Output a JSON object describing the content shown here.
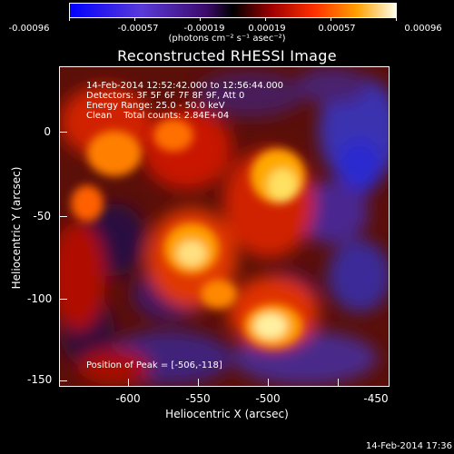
{
  "colorbar": {
    "ticks": [
      "-0.00096",
      "-0.00057",
      "-0.00019",
      "0.00019",
      "0.00057",
      "0.00096"
    ],
    "units": "(photons cm⁻² s⁻¹ asec⁻²)"
  },
  "title": "Reconstructed RHESSI Image",
  "annotations": {
    "time": "14-Feb-2014 12:52:42.000 to 12:56:44.000",
    "detectors": "Detectors: 3F 5F 6F 7F 8F 9F, Att 0",
    "energy": "Energy Range: 25.0 - 50.0 keV",
    "clean": "Clean    Total counts: 2.84E+04",
    "peak": "Position of Peak = [-506,-118]"
  },
  "x_axis": {
    "label": "Heliocentric X (arcsec)",
    "ticks": [
      "-600",
      "-550",
      "-500",
      "-450"
    ]
  },
  "y_axis": {
    "label": "Heliocentric Y (arcsec)",
    "ticks": [
      "0",
      "-50",
      "-100",
      "-150"
    ]
  },
  "footer": "14-Feb-2014 17:36",
  "colors": {
    "background": "#000000",
    "foreground": "#ffffff"
  }
}
